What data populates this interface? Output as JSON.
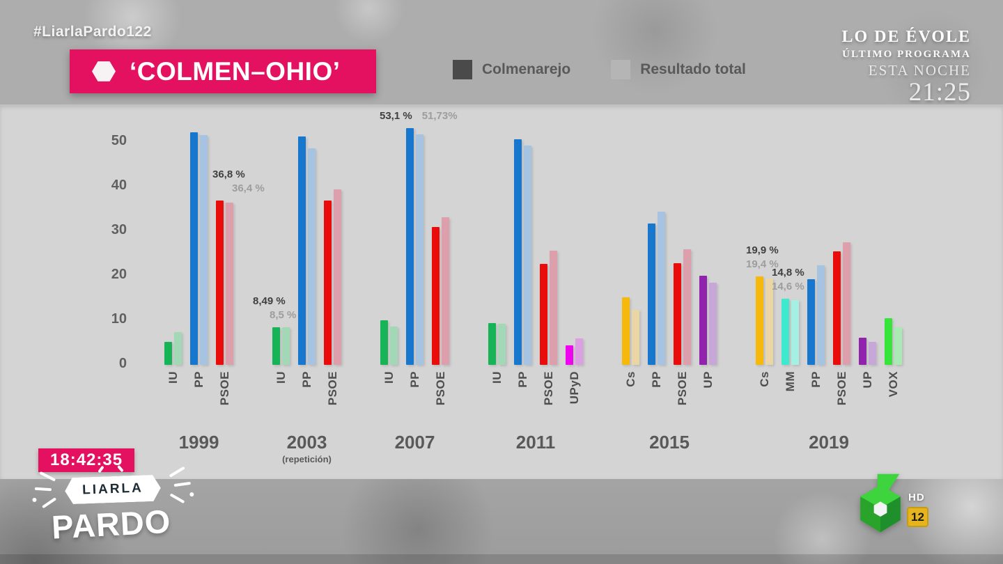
{
  "header": {
    "hashtag": "#LiarlaPardo122",
    "title": "‘COLMEN–OHIO’",
    "legend": [
      {
        "label": "Colmenarejo",
        "color": "#4a4a4a"
      },
      {
        "label": "Resultado total",
        "color": "#b5b5b5"
      }
    ],
    "promo": {
      "show": "LO DE ÉVOLE",
      "line2": "ÚLTIMO PROGRAMA",
      "line3": "ESTA NOCHE",
      "time": "21:25"
    }
  },
  "chart_data": {
    "type": "bar",
    "title": "‘COLMEN–OHIO’",
    "series_labels": [
      "Colmenarejo",
      "Resultado total"
    ],
    "ylim": [
      0,
      55
    ],
    "yticks": [
      50,
      40,
      30,
      20,
      10,
      0
    ],
    "legend_position": "top",
    "grid": false,
    "groups": [
      {
        "year": "1999",
        "parties": [
          {
            "name": "IU",
            "color": "#17b357",
            "light": "#a2d8b6",
            "colmenarejo": 5.2,
            "total": 7.4
          },
          {
            "name": "PP",
            "color": "#1777cf",
            "light": "#a6c3e2",
            "colmenarejo": 52.2,
            "total": 51.6
          },
          {
            "name": "PSOE",
            "color": "#ea0b0b",
            "light": "#dc9fab",
            "colmenarejo": 36.8,
            "total": 36.4,
            "callout": {
              "colmenarejo": "36,8 %",
              "total": "36,4 %"
            }
          }
        ]
      },
      {
        "year": "2003",
        "note": "(repetición)",
        "parties": [
          {
            "name": "IU",
            "color": "#17b357",
            "light": "#a2d8b6",
            "colmenarejo": 8.49,
            "total": 8.5,
            "callout": {
              "colmenarejo": "8,49 %",
              "total": "8,5 %"
            }
          },
          {
            "name": "PP",
            "color": "#1777cf",
            "light": "#a6c3e2",
            "colmenarejo": 51.3,
            "total": 48.6
          },
          {
            "name": "PSOE",
            "color": "#ea0b0b",
            "light": "#dc9fab",
            "colmenarejo": 36.8,
            "total": 39.3
          }
        ]
      },
      {
        "year": "2007",
        "parties": [
          {
            "name": "IU",
            "color": "#17b357",
            "light": "#a2d8b6",
            "colmenarejo": 10.0,
            "total": 8.6
          },
          {
            "name": "PP",
            "color": "#1777cf",
            "light": "#a6c3e2",
            "colmenarejo": 53.1,
            "total": 51.73,
            "callout": {
              "colmenarejo": "53,1 %",
              "total": "51,73%"
            }
          },
          {
            "name": "PSOE",
            "color": "#ea0b0b",
            "light": "#dc9fab",
            "colmenarejo": 31.0,
            "total": 33.2
          }
        ]
      },
      {
        "year": "2011",
        "parties": [
          {
            "name": "IU",
            "color": "#17b357",
            "light": "#a2d8b6",
            "colmenarejo": 9.4,
            "total": 9.2
          },
          {
            "name": "PP",
            "color": "#1777cf",
            "light": "#a6c3e2",
            "colmenarejo": 50.7,
            "total": 49.2
          },
          {
            "name": "PSOE",
            "color": "#ea0b0b",
            "light": "#dc9fab",
            "colmenarejo": 22.7,
            "total": 25.6
          },
          {
            "name": "UPyD",
            "color": "#ef04ef",
            "light": "#dd9fe4",
            "colmenarejo": 4.4,
            "total": 5.9
          }
        ]
      },
      {
        "year": "2015",
        "parties": [
          {
            "name": "Cs",
            "color": "#f7b80c",
            "light": "#ead6a4",
            "colmenarejo": 15.2,
            "total": 12.3
          },
          {
            "name": "PP",
            "color": "#1777cf",
            "light": "#a6c3e2",
            "colmenarejo": 31.7,
            "total": 34.4
          },
          {
            "name": "PSOE",
            "color": "#ea0b0b",
            "light": "#dc9fab",
            "colmenarejo": 22.8,
            "total": 26.0
          },
          {
            "name": "UP",
            "color": "#9122ad",
            "light": "#c7a6d8",
            "colmenarejo": 20.0,
            "total": 18.5
          }
        ]
      },
      {
        "year": "2019",
        "parties": [
          {
            "name": "Cs",
            "color": "#f7b80c",
            "light": "#ead6a4",
            "colmenarejo": 19.9,
            "total": 19.4,
            "callout": {
              "colmenarejo": "19,9 %",
              "total": "19,4 %"
            }
          },
          {
            "name": "MM",
            "color": "#3ee9ce",
            "light": "#a5efe3",
            "colmenarejo": 14.8,
            "total": 14.6,
            "callout": {
              "colmenarejo": "14,8 %",
              "total": "14,6 %"
            }
          },
          {
            "name": "PP",
            "color": "#1777cf",
            "light": "#a6c3e2",
            "colmenarejo": 19.2,
            "total": 22.4
          },
          {
            "name": "PSOE",
            "color": "#ea0b0b",
            "light": "#dc9fab",
            "colmenarejo": 25.5,
            "total": 27.5
          },
          {
            "name": "UP",
            "color": "#9122ad",
            "light": "#c7a6d8",
            "colmenarejo": 6.1,
            "total": 5.2
          },
          {
            "name": "VOX",
            "color": "#36e43a",
            "light": "#abe9b4",
            "colmenarejo": 10.4,
            "total": 8.4
          }
        ]
      }
    ]
  },
  "footer": {
    "clock": "18:42:35",
    "logo_top": "LIARLA",
    "logo_bottom": "PARDO"
  },
  "channel": {
    "hd_label": "HD",
    "age_rating": "12"
  }
}
